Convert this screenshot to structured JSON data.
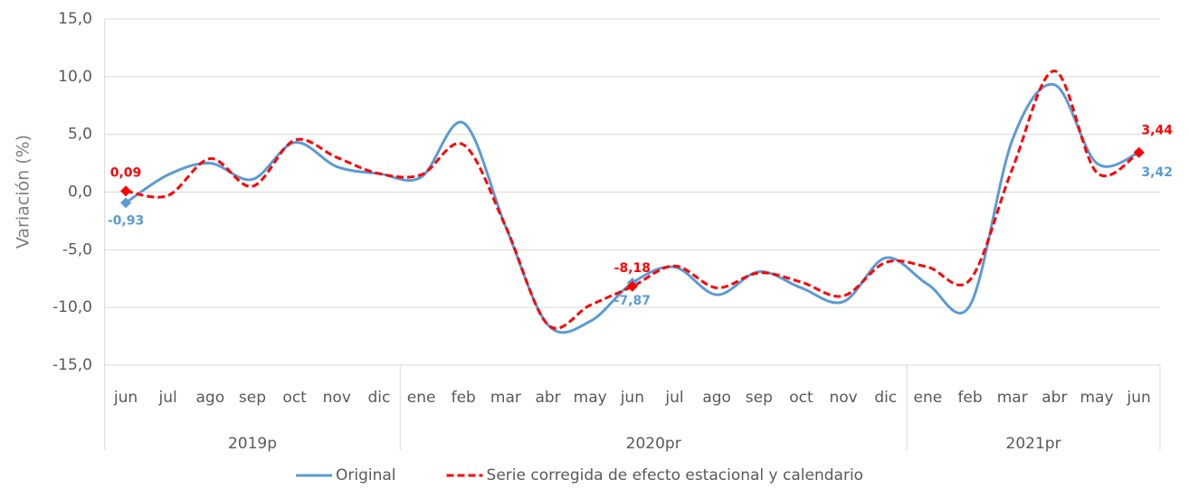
{
  "chart_data": {
    "type": "line",
    "y_axis_label": "Variación (%)",
    "groups": [
      {
        "label": "2019p",
        "categories": [
          "jun",
          "jul",
          "ago",
          "sep",
          "oct",
          "nov",
          "dic"
        ]
      },
      {
        "label": "2020pr",
        "categories": [
          "ene",
          "feb",
          "mar",
          "abr",
          "may",
          "jun",
          "jul",
          "ago",
          "sep",
          "oct",
          "nov",
          "dic"
        ]
      },
      {
        "label": "2021pr",
        "categories": [
          "ene",
          "feb",
          "mar",
          "abr",
          "may",
          "jun"
        ]
      }
    ],
    "series": [
      {
        "name": "Original",
        "color": "#5b9bd5",
        "dashed": false,
        "values": [
          -0.93,
          1.5,
          2.5,
          1.1,
          4.3,
          2.2,
          1.6,
          1.3,
          6.0,
          -3.0,
          -11.5,
          -11.2,
          -7.87,
          -6.5,
          -8.9,
          -6.9,
          -8.3,
          -9.5,
          -5.7,
          -8.0,
          -9.8,
          4.5,
          9.3,
          2.5,
          3.42
        ],
        "value_labels": [
          "-0,93",
          null,
          null,
          null,
          null,
          null,
          null,
          null,
          null,
          null,
          null,
          null,
          "-7,87",
          null,
          null,
          null,
          null,
          null,
          null,
          null,
          null,
          null,
          null,
          null,
          "3,42"
        ]
      },
      {
        "name": "Serie corregida de efecto estacional y calendario",
        "color": "#ff0000",
        "dashed": true,
        "values": [
          0.09,
          -0.3,
          2.9,
          0.5,
          4.5,
          3.0,
          1.6,
          1.5,
          4.1,
          -3.0,
          -11.5,
          -9.8,
          -8.18,
          -6.4,
          -8.3,
          -7.0,
          -7.8,
          -9.0,
          -6.1,
          -6.5,
          -7.6,
          2.0,
          10.5,
          1.7,
          3.44
        ],
        "value_labels": [
          "0,09",
          null,
          null,
          null,
          null,
          null,
          null,
          null,
          null,
          null,
          null,
          null,
          "-8,18",
          null,
          null,
          null,
          null,
          null,
          null,
          null,
          null,
          null,
          null,
          null,
          "3,44"
        ]
      }
    ],
    "ylim": [
      -15,
      15
    ],
    "yticks": [
      {
        "value": -15,
        "label": "-15,0"
      },
      {
        "value": -10,
        "label": "-10,0"
      },
      {
        "value": -5,
        "label": "-5,0"
      },
      {
        "value": 0,
        "label": "0,0"
      },
      {
        "value": 5,
        "label": "5,0"
      },
      {
        "value": 10,
        "label": "10,0"
      },
      {
        "value": 15,
        "label": "15,0"
      }
    ],
    "grid": true,
    "legend": "bottom"
  }
}
